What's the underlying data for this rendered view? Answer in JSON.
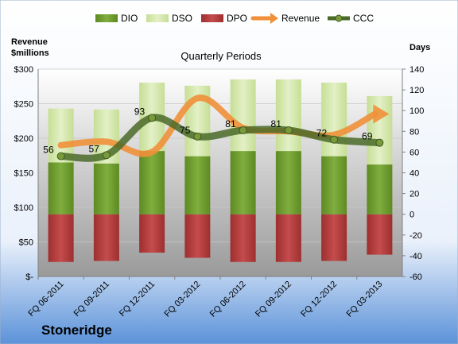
{
  "company": "Stoneridge",
  "chart_data": {
    "type": "bar",
    "title": "Quarterly Periods",
    "ylabel_left": "Revenue\n$millions",
    "ylabel_right": "Days",
    "ylim_left": [
      0,
      300
    ],
    "ylim_right": [
      -60,
      140
    ],
    "yticks_left": [
      "$-",
      "$50",
      "$100",
      "$150",
      "$200",
      "$250",
      "$300"
    ],
    "yticks_right": [
      "-60",
      "-40",
      "-20",
      "0",
      "20",
      "40",
      "60",
      "80",
      "100",
      "120",
      "140"
    ],
    "categories": [
      "FQ 06-2011",
      "FQ 09-2011",
      "FQ 12-2011",
      "FQ 03-2012",
      "FQ 06-2012",
      "FQ 09-2012",
      "FQ 12-2012",
      "FQ 03-2013"
    ],
    "series": [
      {
        "name": "DIO",
        "values": [
          50,
          49,
          61,
          56,
          61,
          61,
          56,
          48
        ]
      },
      {
        "name": "DSO",
        "values": [
          52,
          52,
          66,
          68,
          69,
          69,
          71,
          66
        ]
      },
      {
        "name": "DPO",
        "values": [
          -46,
          -45,
          -37,
          -42,
          -46,
          -46,
          -45,
          -39
        ]
      },
      {
        "name": "Revenue",
        "values": [
          190,
          195,
          180,
          258,
          215,
          210,
          205,
          235
        ]
      },
      {
        "name": "CCC",
        "values": [
          56,
          57,
          93,
          75,
          81,
          81,
          72,
          69
        ]
      }
    ],
    "ccc_labels": [
      "56",
      "57",
      "93",
      "75",
      "81",
      "81",
      "72",
      "69"
    ],
    "colors": {
      "DIO": "#6e9a2e",
      "DSO": "#d4e8a8",
      "DPO": "#b03a3a",
      "Revenue": "#f0903a",
      "CCC": "#4a6a28"
    },
    "legend_position": "top"
  }
}
